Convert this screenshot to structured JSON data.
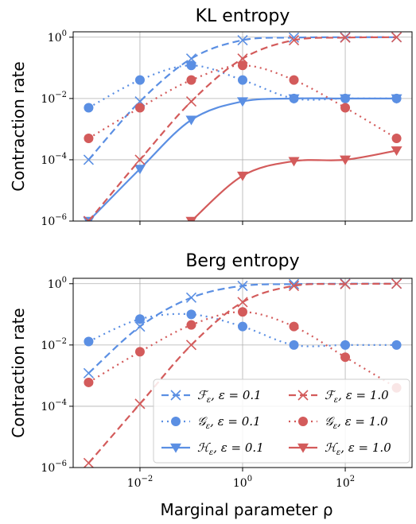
{
  "colors": {
    "blue": "#5b8fe3",
    "red": "#d35b5b"
  },
  "chart_data": [
    {
      "type": "line",
      "title": "KL entropy",
      "ylabel": "Contraction rate",
      "xlabel": "",
      "xscale": "log",
      "yscale": "log",
      "xlim": [
        0.0005,
        2000
      ],
      "ylim": [
        1e-06,
        1.5
      ],
      "grid": true,
      "x_ticks": [
        "10^-2",
        "10^0",
        "10^2"
      ],
      "y_ticks": [
        "10^0",
        "10^-2",
        "10^-4",
        "10^-6"
      ],
      "series": [
        {
          "name": "F_ε, ε = 0.1",
          "color": "#5b8fe3",
          "style": "dashed",
          "marker": "x",
          "x": [
            0.001,
            0.01,
            0.1,
            1,
            10,
            100,
            1000
          ],
          "y": [
            0.0001,
            0.008,
            0.2,
            0.8,
            0.97,
            1.0,
            1.0
          ]
        },
        {
          "name": "G_ε, ε = 0.1",
          "color": "#5b8fe3",
          "style": "dotted",
          "marker": "circle",
          "x": [
            0.001,
            0.01,
            0.1,
            1,
            10,
            100,
            1000
          ],
          "y": [
            0.005,
            0.04,
            0.12,
            0.04,
            0.01,
            0.01,
            0.01
          ]
        },
        {
          "name": "H_ε, ε = 0.1",
          "color": "#5b8fe3",
          "style": "solid",
          "marker": "triangle",
          "x": [
            0.001,
            0.01,
            0.1,
            1,
            10,
            100,
            1000
          ],
          "y": [
            1e-06,
            5e-05,
            0.002,
            0.008,
            0.01,
            0.01,
            0.01
          ]
        },
        {
          "name": "F_ε, ε = 1.0",
          "color": "#d35b5b",
          "style": "dashed",
          "marker": "x",
          "x": [
            0.001,
            0.01,
            0.1,
            1,
            10,
            100,
            1000
          ],
          "y": [
            1e-06,
            0.0001,
            0.008,
            0.2,
            0.8,
            0.97,
            1.0
          ]
        },
        {
          "name": "G_ε, ε = 1.0",
          "color": "#d35b5b",
          "style": "dotted",
          "marker": "circle",
          "x": [
            0.001,
            0.01,
            0.1,
            1,
            10,
            100,
            1000
          ],
          "y": [
            0.0005,
            0.005,
            0.04,
            0.12,
            0.04,
            0.005,
            0.0005
          ]
        },
        {
          "name": "H_ε, ε = 1.0",
          "color": "#d35b5b",
          "style": "solid",
          "marker": "triangle",
          "x": [
            0.1,
            1,
            10,
            100,
            1000
          ],
          "y": [
            1e-06,
            3e-05,
            9e-05,
            0.0001,
            0.0002
          ]
        }
      ]
    },
    {
      "type": "line",
      "title": "Berg entropy",
      "ylabel": "Contraction rate",
      "xlabel": "Marginal parameter ρ",
      "xscale": "log",
      "yscale": "log",
      "xlim": [
        0.0005,
        2000
      ],
      "ylim": [
        1e-06,
        1.5
      ],
      "grid": true,
      "legend": "lower-right",
      "x_ticks": [
        "10^-2",
        "10^0",
        "10^2"
      ],
      "y_ticks": [
        "10^0",
        "10^-2",
        "10^-4",
        "10^-6"
      ],
      "series": [
        {
          "name": "F_ε, ε = 0.1",
          "color": "#5b8fe3",
          "style": "dashed",
          "marker": "x",
          "x": [
            0.001,
            0.01,
            0.1,
            1,
            10,
            100,
            1000
          ],
          "y": [
            0.0012,
            0.04,
            0.35,
            0.85,
            0.97,
            1.0,
            1.0
          ]
        },
        {
          "name": "G_ε, ε = 0.1",
          "color": "#5b8fe3",
          "style": "dotted",
          "marker": "circle",
          "x": [
            0.001,
            0.01,
            0.1,
            1,
            10,
            100,
            1000
          ],
          "y": [
            0.013,
            0.07,
            0.1,
            0.04,
            0.01,
            0.01,
            0.01
          ]
        },
        {
          "name": "F_ε, ε = 1.0",
          "color": "#d35b5b",
          "style": "dashed",
          "marker": "x",
          "x": [
            0.001,
            0.01,
            0.1,
            1,
            10,
            100,
            1000
          ],
          "y": [
            1.4e-06,
            0.00012,
            0.01,
            0.25,
            0.85,
            0.97,
            1.0
          ]
        },
        {
          "name": "G_ε, ε = 1.0",
          "color": "#d35b5b",
          "style": "dotted",
          "marker": "circle",
          "x": [
            0.001,
            0.01,
            0.1,
            1,
            10,
            100,
            1000
          ],
          "y": [
            0.0006,
            0.006,
            0.045,
            0.12,
            0.04,
            0.004,
            0.0004
          ]
        }
      ]
    }
  ],
  "legend": {
    "items": [
      {
        "sym": "F",
        "label": ", ε = 0.1",
        "color": "#5b8fe3",
        "style": "dashed",
        "marker": "x"
      },
      {
        "sym": "F",
        "label": ", ε = 1.0",
        "color": "#d35b5b",
        "style": "dashed",
        "marker": "x"
      },
      {
        "sym": "G",
        "label": ", ε = 0.1",
        "color": "#5b8fe3",
        "style": "dotted",
        "marker": "circle"
      },
      {
        "sym": "G",
        "label": ", ε = 1.0",
        "color": "#d35b5b",
        "style": "dotted",
        "marker": "circle"
      },
      {
        "sym": "H",
        "label": ", ε = 0.1",
        "color": "#5b8fe3",
        "style": "solid",
        "marker": "triangle"
      },
      {
        "sym": "H",
        "label": ", ε = 1.0",
        "color": "#d35b5b",
        "style": "solid",
        "marker": "triangle"
      }
    ]
  }
}
